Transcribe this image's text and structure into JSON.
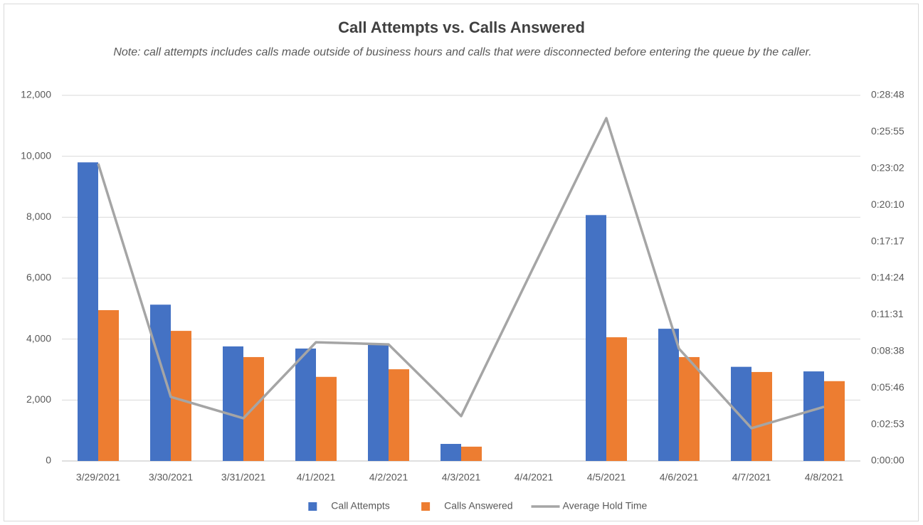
{
  "chart_data": {
    "type": "bar",
    "title": "Call Attempts vs. Calls Answered",
    "subtitle": "Note: call attempts includes calls made outside of business hours and calls that were disconnected before entering the queue by the caller.",
    "categories": [
      "3/29/2021",
      "3/30/2021",
      "3/31/2021",
      "4/1/2021",
      "4/2/2021",
      "4/3/2021",
      "4/4/2021",
      "4/5/2021",
      "4/6/2021",
      "4/7/2021",
      "4/8/2021"
    ],
    "series": [
      {
        "name": "Call Attempts",
        "type": "bar",
        "color": "#4472c4",
        "values": [
          9800,
          5130,
          3760,
          3690,
          3850,
          560,
          0,
          8070,
          4340,
          3090,
          2940
        ]
      },
      {
        "name": "Calls Answered",
        "type": "bar",
        "color": "#ed7d31",
        "values": [
          4950,
          4270,
          3410,
          2760,
          3010,
          470,
          0,
          4060,
          3410,
          2920,
          2620
        ]
      },
      {
        "name": "Average Hold Time",
        "type": "line",
        "color": "#a5a5a5",
        "axis": "y2",
        "values": [
          1405,
          303,
          202,
          561,
          551,
          212,
          918,
          1620,
          531,
          155,
          256
        ]
      }
    ],
    "ylim": [
      0,
      12000
    ],
    "yticks": [
      0,
      {
        "value": 2000,
        "label": "2,000"
      },
      {
        "value": 4000,
        "label": "4,000"
      },
      {
        "value": 6000,
        "label": "6,000"
      },
      {
        "value": 8000,
        "label": "8,000"
      },
      {
        "value": 10000,
        "label": "10,000"
      },
      {
        "value": 12000,
        "label": "12,000"
      }
    ],
    "y2lim": [
      0,
      1728
    ],
    "y2ticks": [
      {
        "value": 0,
        "label": "0:00:00"
      },
      {
        "value": 172.8,
        "label": "0:02:53"
      },
      {
        "value": 345.6,
        "label": "0:05:46"
      },
      {
        "value": 518.4,
        "label": "0:08:38"
      },
      {
        "value": 691.2,
        "label": "0:11:31"
      },
      {
        "value": 864,
        "label": "0:14:24"
      },
      {
        "value": 1036.8,
        "label": "0:17:17"
      },
      {
        "value": 1209.6,
        "label": "0:20:10"
      },
      {
        "value": 1382.4,
        "label": "0:23:02"
      },
      {
        "value": 1555.2,
        "label": "0:25:55"
      },
      {
        "value": 1728,
        "label": "0:28:48"
      }
    ],
    "grid": true,
    "legend": "bottom"
  }
}
